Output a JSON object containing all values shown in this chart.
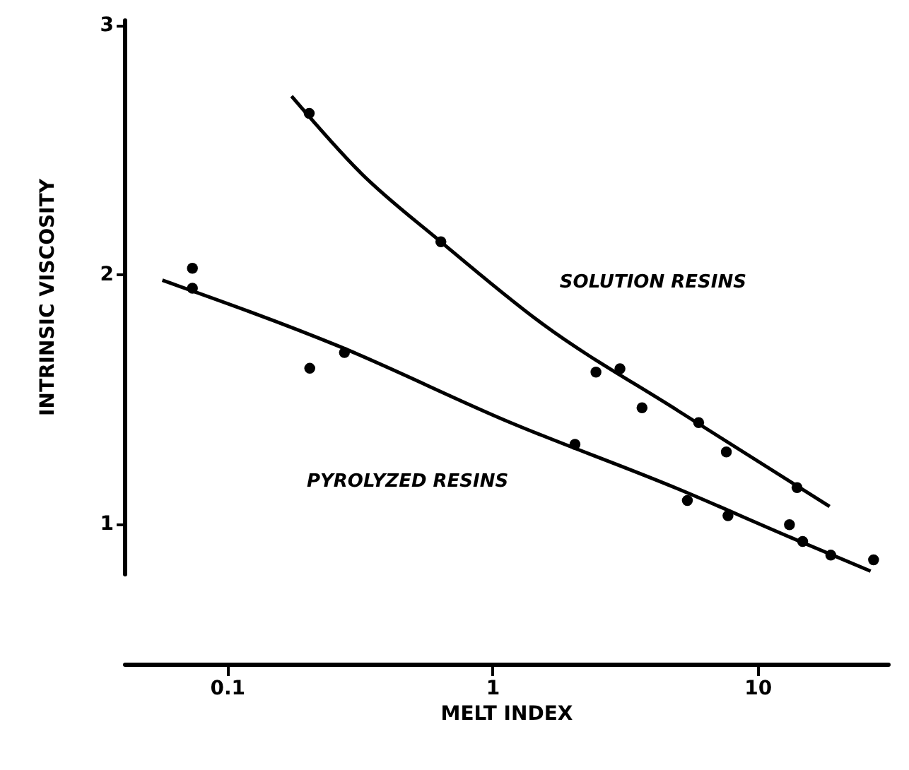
{
  "chart_data": {
    "type": "scatter",
    "xlabel": "MELT INDEX",
    "ylabel": "INTRINSIC   VISCOSITY",
    "log": "x",
    "xlim": [
      0.041,
      31
    ],
    "xticks": [
      0.1,
      1,
      10
    ],
    "ylim": [
      0.8,
      3.02
    ],
    "yticks": [
      3,
      2,
      1
    ],
    "grid": false,
    "series": [
      {
        "marker": "circle",
        "color": "#000000",
        "x": [
          0.204,
          0.64,
          2.46,
          3.03,
          3.67,
          6.0,
          7.63,
          14.1
        ],
        "values": [
          2.645,
          2.13,
          1.608,
          1.621,
          1.465,
          1.405,
          1.288,
          1.145
        ]
      },
      {
        "marker": "circle",
        "color": "#000000",
        "x": [
          0.074,
          0.074,
          0.205,
          0.277,
          2.05,
          5.44,
          7.74,
          13.2,
          14.8,
          18.9,
          27.4
        ],
        "values": [
          2.024,
          1.944,
          1.623,
          1.686,
          1.318,
          1.093,
          1.032,
          0.996,
          0.929,
          0.874,
          0.855
        ]
      },
      {
        "type": "line",
        "name": "SOLUTION RESINS",
        "color": "#000000",
        "x": [
          0.175,
          0.32,
          0.64,
          1.55,
          5.03,
          18.7
        ],
        "values": [
          2.714,
          2.405,
          2.13,
          1.8,
          1.452,
          1.069
        ]
      },
      {
        "type": "line",
        "name": "PYROLYZED RESINS",
        "color": "#000000",
        "x": [
          0.057,
          0.263,
          1.15,
          5.03,
          13.4,
          26.7
        ],
        "values": [
          1.976,
          1.712,
          1.409,
          1.139,
          0.944,
          0.81
        ]
      }
    ]
  }
}
